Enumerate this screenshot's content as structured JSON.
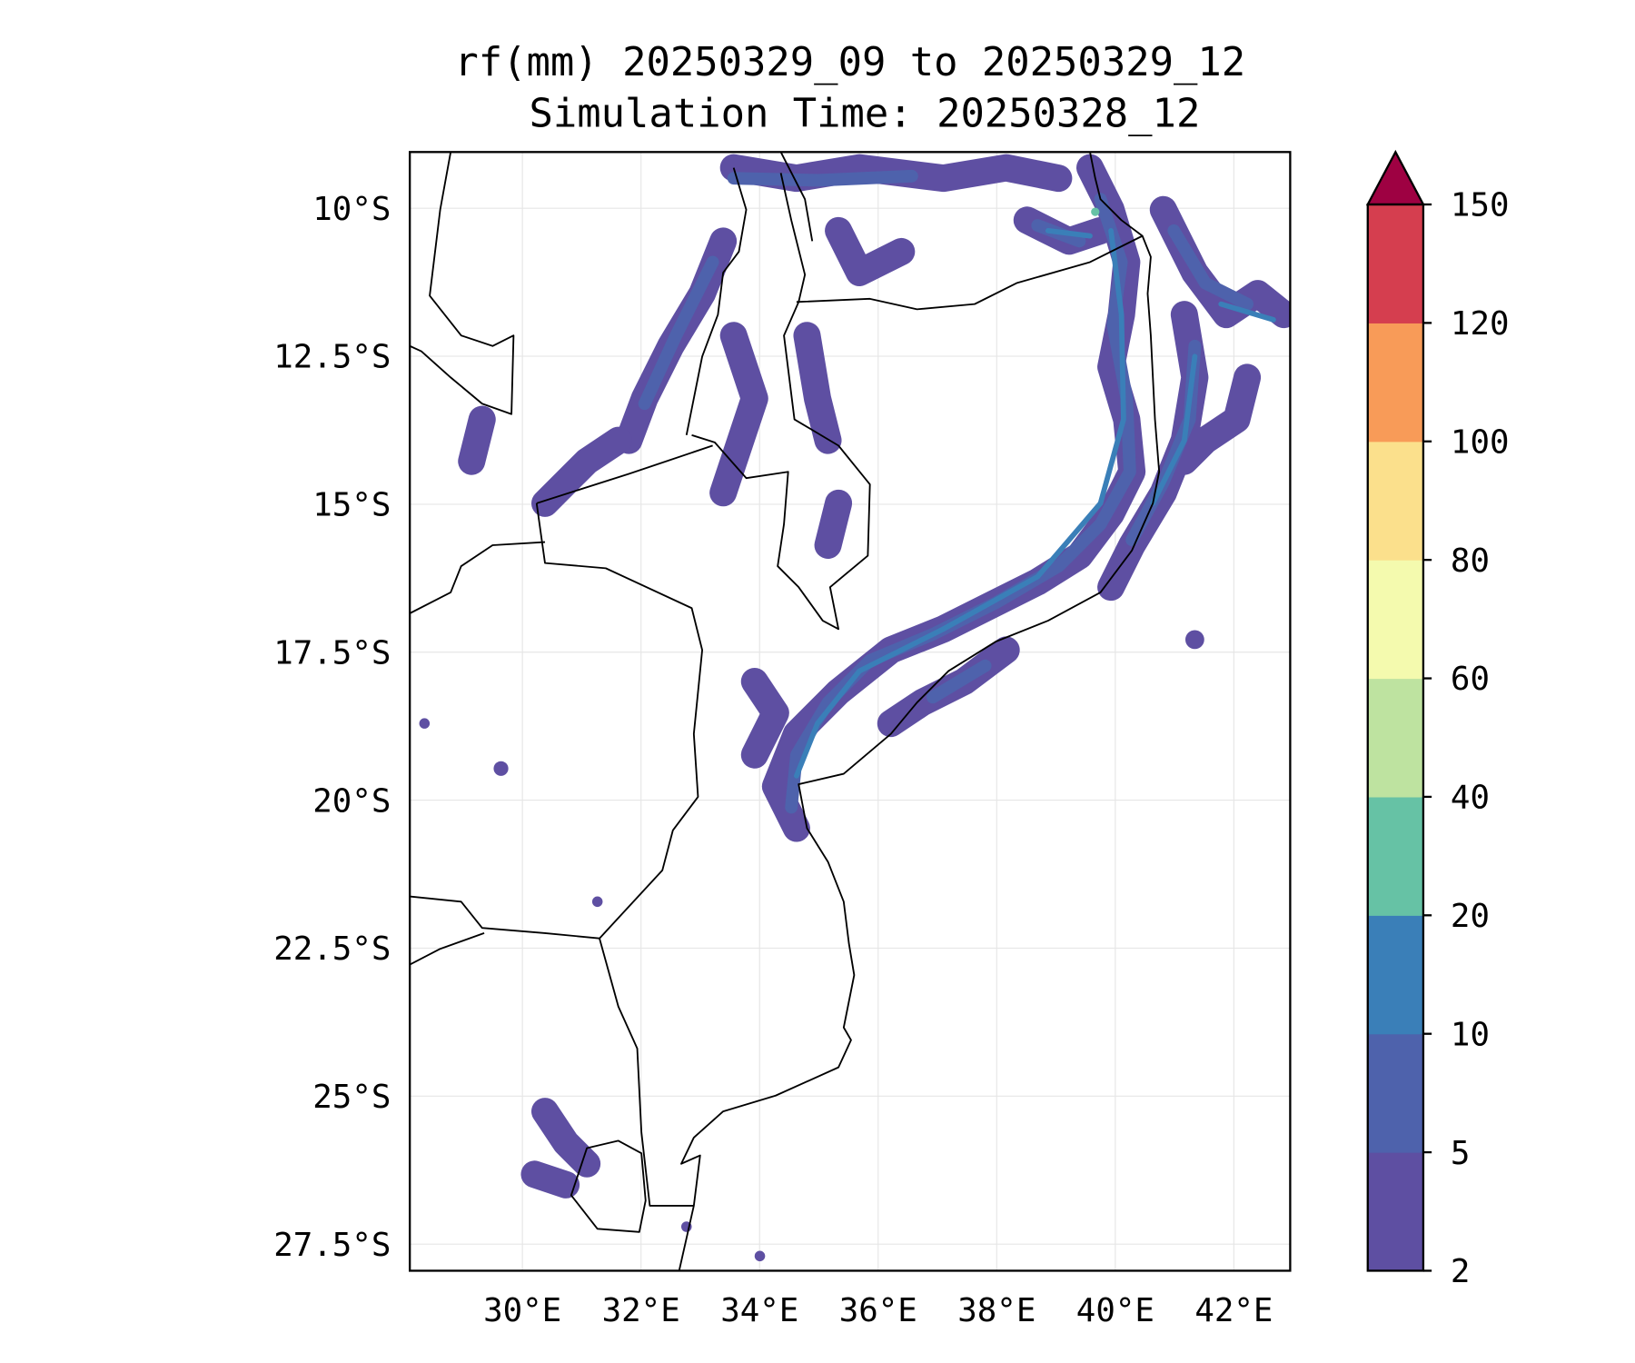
{
  "chart_data": {
    "type": "heatmap",
    "title_line1": "rf(mm) 20250329_09 to 20250329_12",
    "title_line2": "Simulation Time: 20250328_12",
    "variable": "rf(mm)",
    "lon_range": [
      28.1,
      42.95
    ],
    "lat_range": [
      -27.95,
      -9.05
    ],
    "grid": true,
    "xticks": [
      30,
      32,
      34,
      36,
      38,
      40,
      42
    ],
    "xtick_labels": [
      "30°E",
      "32°E",
      "34°E",
      "36°E",
      "38°E",
      "40°E",
      "42°E"
    ],
    "yticks": [
      -10,
      -12.5,
      -15,
      -17.5,
      -20,
      -22.5,
      -25,
      -27.5
    ],
    "ytick_labels": [
      "10°S",
      "12.5°S",
      "15°S",
      "17.5°S",
      "20°S",
      "22.5°S",
      "25°S",
      "27.5°S"
    ],
    "colorbar": {
      "levels": [
        2,
        5,
        10,
        20,
        40,
        60,
        80,
        100,
        120,
        150
      ],
      "tick_labels": [
        "2",
        "5",
        "10",
        "20",
        "40",
        "60",
        "80",
        "100",
        "120",
        "150"
      ],
      "colors": [
        "#5e4fa2",
        "#4e62ac",
        "#3a7fb8",
        "#66c2a5",
        "#bee3a0",
        "#f4faae",
        "#fbe08c",
        "#f89b58",
        "#d53e4f"
      ],
      "extend_color": "#9e0142",
      "extend": "max",
      "placement": "right"
    }
  }
}
